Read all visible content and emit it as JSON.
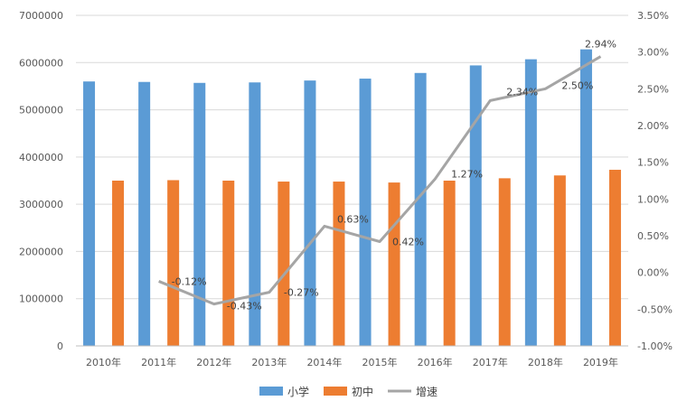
{
  "chart_data": {
    "type": "bar",
    "categories": [
      "2010年",
      "2011年",
      "2012年",
      "2013年",
      "2014年",
      "2015年",
      "2016年",
      "2017年",
      "2018年",
      "2019年"
    ],
    "series": [
      {
        "name": "小学",
        "type": "bar",
        "axis": "left",
        "color": "#5B9BD5",
        "values": [
          5600000,
          5590000,
          5570000,
          5580000,
          5620000,
          5660000,
          5780000,
          5940000,
          6070000,
          6280000
        ]
      },
      {
        "name": "初中",
        "type": "bar",
        "axis": "left",
        "color": "#ED7D31",
        "values": [
          3500000,
          3510000,
          3500000,
          3480000,
          3480000,
          3460000,
          3500000,
          3550000,
          3610000,
          3730000
        ]
      },
      {
        "name": "增速",
        "type": "line",
        "axis": "right",
        "color": "#A5A5A5",
        "values": [
          null,
          -0.12,
          -0.43,
          -0.27,
          0.63,
          0.42,
          1.27,
          2.34,
          2.5,
          2.94
        ],
        "labels": [
          "",
          "-0.12%",
          "-0.43%",
          "-0.27%",
          "0.63%",
          "0.42%",
          "1.27%",
          "2.34%",
          "2.50%",
          "2.94%"
        ]
      }
    ],
    "ylim": [
      0,
      7000000
    ],
    "yticks": [
      "0",
      "1000000",
      "2000000",
      "3000000",
      "4000000",
      "5000000",
      "6000000",
      "7000000"
    ],
    "y2lim": [
      -1.0,
      3.5
    ],
    "y2ticks": [
      "-1.00%",
      "-0.50%",
      "0.00%",
      "0.50%",
      "1.00%",
      "1.50%",
      "2.00%",
      "2.50%",
      "3.00%",
      "3.50%"
    ],
    "grid": true,
    "legend_position": "bottom"
  }
}
